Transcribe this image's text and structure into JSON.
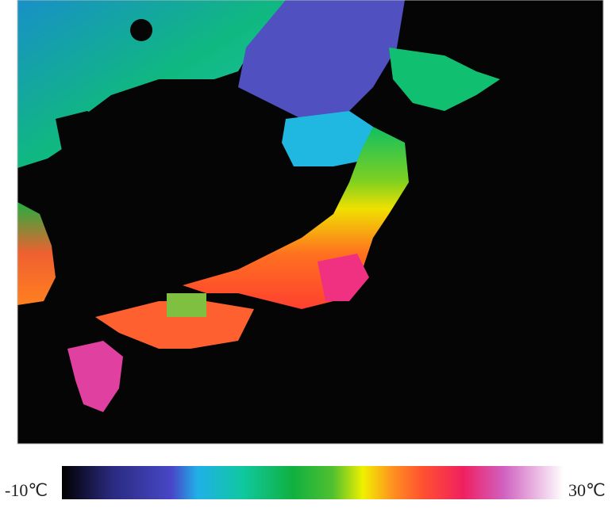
{
  "legend": {
    "min_label": "-10℃",
    "max_label": "30℃"
  }
}
